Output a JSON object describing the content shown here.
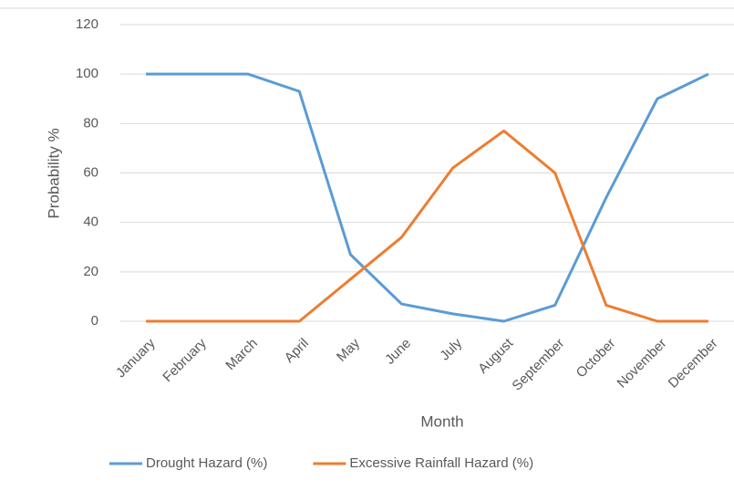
{
  "chart_data": {
    "type": "line",
    "x_label": "Month",
    "y_label": "Probability %",
    "categories": [
      "January",
      "February",
      "March",
      "April",
      "May",
      "June",
      "July",
      "August",
      "September",
      "October",
      "November",
      "December"
    ],
    "series": [
      {
        "name": "Drought Hazard (%)",
        "color": "#5b9bd5",
        "values": [
          100,
          100,
          100,
          93,
          27,
          7,
          3,
          0,
          6.5,
          50,
          90,
          100
        ]
      },
      {
        "name": "Excessive Rainfall Hazard (%)",
        "color": "#ed7d31",
        "values": [
          0,
          0,
          0,
          0,
          17,
          34,
          62,
          77,
          60,
          6.5,
          0,
          0
        ]
      }
    ],
    "ylim": [
      0,
      120
    ],
    "yticks": [
      0,
      20,
      40,
      60,
      80,
      100,
      120
    ],
    "grid": true,
    "legend": "bottom"
  }
}
